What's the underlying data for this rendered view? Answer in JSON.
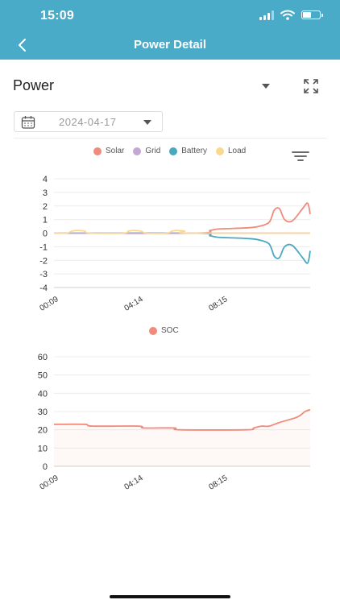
{
  "status": {
    "time": "15:09",
    "battery_level": 0.55
  },
  "header": {
    "title": "Power Detail"
  },
  "power_selector": {
    "label": "Power"
  },
  "date_picker": {
    "value": "2024-04-17"
  },
  "colors": {
    "header_bg": "#4aabc8",
    "solar": "#f08a7a",
    "grid": "#c3a7d4",
    "battery": "#4aa7c0",
    "load": "#fbd88f",
    "soc": "#f08a7a"
  },
  "icons": [
    "back-arrow-icon",
    "dropdown-triangle-icon",
    "expand-icon",
    "calendar-icon",
    "filter-icon"
  ],
  "chart_data": [
    {
      "type": "line",
      "legend": [
        "Solar",
        "Grid",
        "Battery",
        "Load"
      ],
      "y_ticks": [
        "4",
        "3",
        "2",
        "1",
        "0",
        "-1",
        "-2",
        "-3",
        "-4"
      ],
      "ylim": [
        -4,
        4
      ],
      "x_ticks": [
        "00:09",
        "04:14",
        "08:15"
      ],
      "x_tick_positions": [
        0,
        33,
        66
      ],
      "x_count": 100,
      "series": [
        {
          "name": "Solar",
          "key": "solar",
          "points": [
            [
              0,
              0
            ],
            [
              55,
              0
            ],
            [
              61,
              0.2
            ],
            [
              64,
              0.3
            ],
            [
              70,
              0.35
            ],
            [
              76,
              0.4
            ],
            [
              80,
              0.5
            ],
            [
              84,
              0.8
            ],
            [
              86,
              1.7
            ],
            [
              88,
              1.8
            ],
            [
              90,
              1.0
            ],
            [
              93,
              0.9
            ],
            [
              97,
              1.8
            ],
            [
              99,
              2.2
            ],
            [
              100,
              1.4
            ]
          ]
        },
        {
          "name": "Battery",
          "key": "battery",
          "points": [
            [
              0,
              0
            ],
            [
              55,
              0
            ],
            [
              61,
              -0.2
            ],
            [
              64,
              -0.3
            ],
            [
              70,
              -0.35
            ],
            [
              76,
              -0.4
            ],
            [
              80,
              -0.5
            ],
            [
              84,
              -0.8
            ],
            [
              86,
              -1.7
            ],
            [
              88,
              -1.8
            ],
            [
              90,
              -1.0
            ],
            [
              93,
              -0.9
            ],
            [
              97,
              -1.8
            ],
            [
              99,
              -2.2
            ],
            [
              100,
              -1.3
            ]
          ]
        },
        {
          "name": "Grid",
          "key": "grid",
          "points": [
            [
              0,
              0
            ],
            [
              100,
              0
            ]
          ]
        },
        {
          "name": "Load",
          "key": "load",
          "points": [
            [
              0,
              0
            ],
            [
              5,
              0
            ],
            [
              7,
              0.15
            ],
            [
              9,
              0.2
            ],
            [
              12,
              0.15
            ],
            [
              14,
              0
            ],
            [
              27,
              0
            ],
            [
              29,
              0.15
            ],
            [
              31,
              0.2
            ],
            [
              34,
              0.15
            ],
            [
              36,
              0
            ],
            [
              44,
              0
            ],
            [
              46,
              0.15
            ],
            [
              48,
              0.2
            ],
            [
              51,
              0.15
            ],
            [
              53,
              0
            ],
            [
              100,
              0
            ]
          ]
        }
      ]
    },
    {
      "type": "area",
      "legend": [
        "SOC"
      ],
      "y_ticks": [
        "60",
        "50",
        "40",
        "30",
        "20",
        "10",
        "0"
      ],
      "ylim": [
        0,
        60
      ],
      "x_ticks": [
        "00:09",
        "04:14",
        "08:15"
      ],
      "x_tick_positions": [
        0,
        33,
        66
      ],
      "x_count": 100,
      "series": [
        {
          "name": "SOC",
          "key": "soc",
          "points": [
            [
              0,
              23
            ],
            [
              12,
              23
            ],
            [
              15,
              22
            ],
            [
              33,
              22
            ],
            [
              35,
              21
            ],
            [
              47,
              21
            ],
            [
              49,
              20
            ],
            [
              75,
              20
            ],
            [
              78,
              21
            ],
            [
              81,
              22
            ],
            [
              84,
              22
            ],
            [
              88,
              24
            ],
            [
              95,
              27
            ],
            [
              98,
              30
            ],
            [
              100,
              31
            ]
          ]
        }
      ]
    }
  ]
}
